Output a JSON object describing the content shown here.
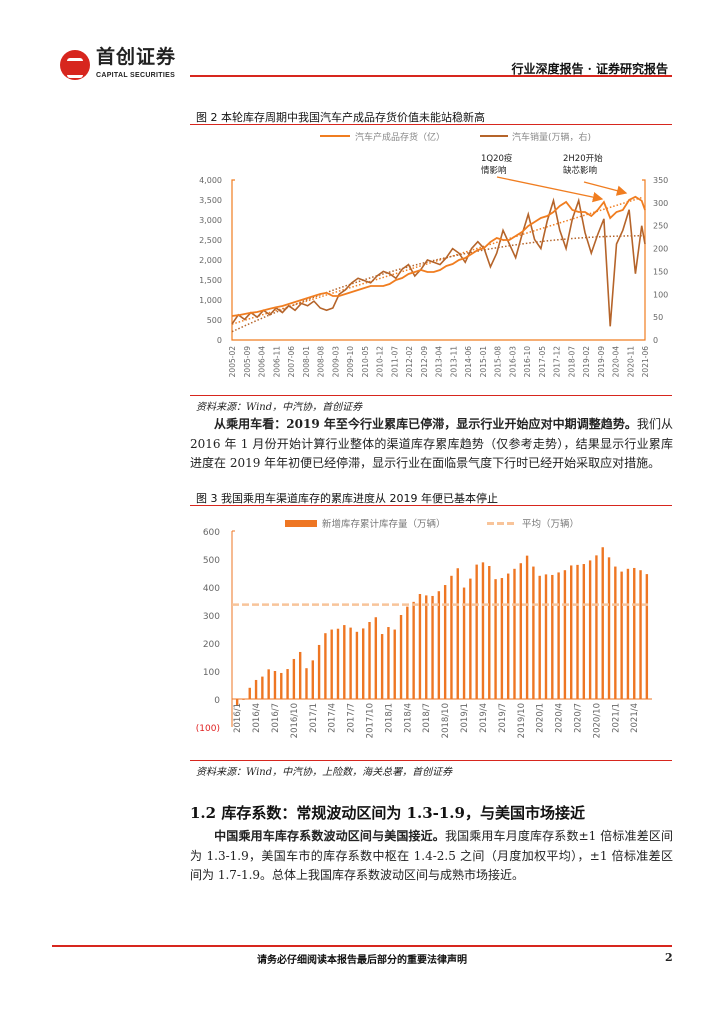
{
  "header": {
    "brand_cn": "首创证券",
    "brand_en": "CAPITAL SECURITIES",
    "report_type": "行业深度报告 · 证券研究报告"
  },
  "figure2": {
    "title": "图  2 本轮库存周期中我国汽车产成品存货价值未能站稳新高",
    "source": "资料来源：Wind，中汽协，首创证券",
    "annotations": [
      {
        "line1": "1Q20疫",
        "line2": "情影响"
      },
      {
        "line1": "2H20开始",
        "line2": "缺芯影响"
      }
    ]
  },
  "paragraph1": {
    "lead": "从乘用车看：2019 年至今行业累库已停滞，显示行业开始应对中期调整趋势。",
    "body": "我们从 2016 年 1 月份开始计算行业整体的渠道库存累库趋势（仅参考走势），结果显示行业累库进度在 2019 年年初便已经停滞，显示行业在面临景气度下行时已经开始采取应对措施。"
  },
  "figure3": {
    "title": "图  3 我国乘用车渠道库存的累库进度从 2019 年便已基本停止",
    "source": "资料来源：Wind，中汽协，上险数，海关总署，首创证券"
  },
  "section": {
    "heading": "1.2 库存系数：常规波动区间为 1.3-1.9，与美国市场接近",
    "lead": "中国乘用车库存系数波动区间与美国接近。",
    "body": "我国乘用车月度库存系数±1 倍标准差区间为 1.3-1.9，美国车市的库存系数中枢在 1.4-2.5 之间（月度加权平均），±1 倍标准差区间为 1.7-1.9。总体上我国库存系数波动区间与成熟市场接近。"
  },
  "footer": {
    "notice": "请务必仔细阅读本报告最后部分的重要法律声明",
    "page": "2"
  },
  "chart_data": [
    {
      "type": "line",
      "title": "图  2 本轮库存周期中我国汽车产成品存货价值未能站稳新高",
      "legend": [
        "汽车产成品存货（亿）",
        "汽车销量(万辆，右)"
      ],
      "colors": [
        "#f07d20",
        "#b5642a"
      ],
      "x_tick_labels": [
        "2005-02",
        "2005-09",
        "2006-04",
        "2006-11",
        "2007-06",
        "2008-01",
        "2008-08",
        "2009-03",
        "2009-10",
        "2010-05",
        "2010-12",
        "2011-07",
        "2012-02",
        "2012-09",
        "2013-04",
        "2013-11",
        "2014-06",
        "2015-01",
        "2015-08",
        "2016-03",
        "2016-10",
        "2017-05",
        "2017-12",
        "2018-07",
        "2019-02",
        "2019-09",
        "2020-04",
        "2020-11",
        "2021-06"
      ],
      "y_left": {
        "ticks": [
          "0",
          "500",
          "1,000",
          "1,500",
          "2,000",
          "2,500",
          "3,000",
          "3,500",
          "4,000"
        ],
        "range": [
          0,
          4000
        ]
      },
      "y_right": {
        "ticks": [
          "0",
          "50",
          "100",
          "150",
          "200",
          "250",
          "300",
          "350"
        ],
        "range": [
          0,
          350
        ]
      },
      "x_range": [
        2005.08,
        2021.46
      ],
      "x": [
        2005.08,
        2005.33,
        2005.58,
        2005.83,
        2006.08,
        2006.33,
        2006.58,
        2006.83,
        2007.08,
        2007.33,
        2007.58,
        2007.83,
        2008.08,
        2008.33,
        2008.58,
        2008.83,
        2009.08,
        2009.33,
        2009.58,
        2009.83,
        2010.08,
        2010.33,
        2010.58,
        2010.83,
        2011.08,
        2011.33,
        2011.58,
        2011.83,
        2012.08,
        2012.33,
        2012.58,
        2012.83,
        2013.08,
        2013.33,
        2013.58,
        2013.83,
        2014.08,
        2014.33,
        2014.58,
        2014.83,
        2015.08,
        2015.33,
        2015.58,
        2015.83,
        2016.08,
        2016.33,
        2016.58,
        2016.83,
        2017.08,
        2017.33,
        2017.58,
        2017.83,
        2018.08,
        2018.33,
        2018.58,
        2018.83,
        2019.08,
        2019.33,
        2019.58,
        2019.83,
        2020.08,
        2020.33,
        2020.58,
        2020.83,
        2021.08,
        2021.33,
        2021.46
      ],
      "series": [
        {
          "name": "汽车产成品存货（亿）",
          "axis": "left",
          "values": [
            600,
            620,
            650,
            680,
            700,
            740,
            780,
            820,
            850,
            900,
            950,
            1000,
            1050,
            1100,
            1150,
            1180,
            1100,
            1100,
            1150,
            1200,
            1250,
            1300,
            1350,
            1350,
            1350,
            1400,
            1500,
            1550,
            1650,
            1700,
            1750,
            1700,
            1700,
            1750,
            1850,
            1900,
            2000,
            2050,
            2150,
            2250,
            2300,
            2450,
            2550,
            2500,
            2500,
            2600,
            2700,
            2850,
            2950,
            3050,
            3100,
            3200,
            3350,
            3450,
            3250,
            3200,
            3200,
            3100,
            3250,
            3450,
            3050,
            3200,
            3250,
            3500,
            3580,
            3480,
            3250
          ]
        },
        {
          "name": "汽车销量(万辆，右)",
          "axis": "right",
          "values": [
            35,
            55,
            45,
            60,
            50,
            65,
            55,
            70,
            60,
            75,
            65,
            80,
            75,
            85,
            70,
            65,
            70,
            100,
            110,
            125,
            135,
            130,
            125,
            140,
            150,
            145,
            135,
            155,
            165,
            140,
            155,
            175,
            170,
            165,
            180,
            200,
            190,
            170,
            200,
            215,
            200,
            160,
            190,
            240,
            210,
            180,
            230,
            275,
            220,
            200,
            260,
            305,
            240,
            200,
            265,
            305,
            235,
            190,
            230,
            265,
            30,
            210,
            240,
            285,
            145,
            250,
            210
          ]
        }
      ],
      "trendlines": "dotted linear (inventory), dotted polynomial (sales)"
    },
    {
      "type": "bar",
      "title": "图  3 我国乘用车渠道库存的累库进度从 2019 年便已基本停止",
      "legend": [
        "新增库存累计库存量（万辆）",
        "平均（万辆）"
      ],
      "colors": [
        "#ee7623",
        "#f8c49a"
      ],
      "x_tick_labels": [
        "2016/1",
        "2016/4",
        "2016/7",
        "2016/10",
        "2017/1",
        "2017/4",
        "2017/7",
        "2017/10",
        "2018/1",
        "2018/4",
        "2018/7",
        "2018/10",
        "2019/1",
        "2019/4",
        "2019/7",
        "2019/10",
        "2020/1",
        "2020/4",
        "2020/7",
        "2020/10",
        "2021/1",
        "2021/4"
      ],
      "y_ticks": [
        "(100)",
        "0",
        "100",
        "200",
        "300",
        "400",
        "500",
        "600"
      ],
      "ylim": [
        -100,
        600
      ],
      "average": 337,
      "values": [
        -25,
        -3,
        40,
        68,
        80,
        106,
        100,
        93,
        107,
        143,
        168,
        110,
        138,
        193,
        235,
        248,
        251,
        264,
        255,
        240,
        252,
        275,
        292,
        232,
        257,
        248,
        300,
        330,
        347,
        375,
        370,
        368,
        385,
        407,
        440,
        467,
        398,
        430,
        480,
        488,
        475,
        428,
        432,
        448,
        465,
        485,
        512,
        473,
        440,
        445,
        443,
        452,
        460,
        477,
        479,
        482,
        495,
        513,
        542,
        506,
        473,
        455,
        465,
        468,
        460,
        446
      ]
    }
  ]
}
